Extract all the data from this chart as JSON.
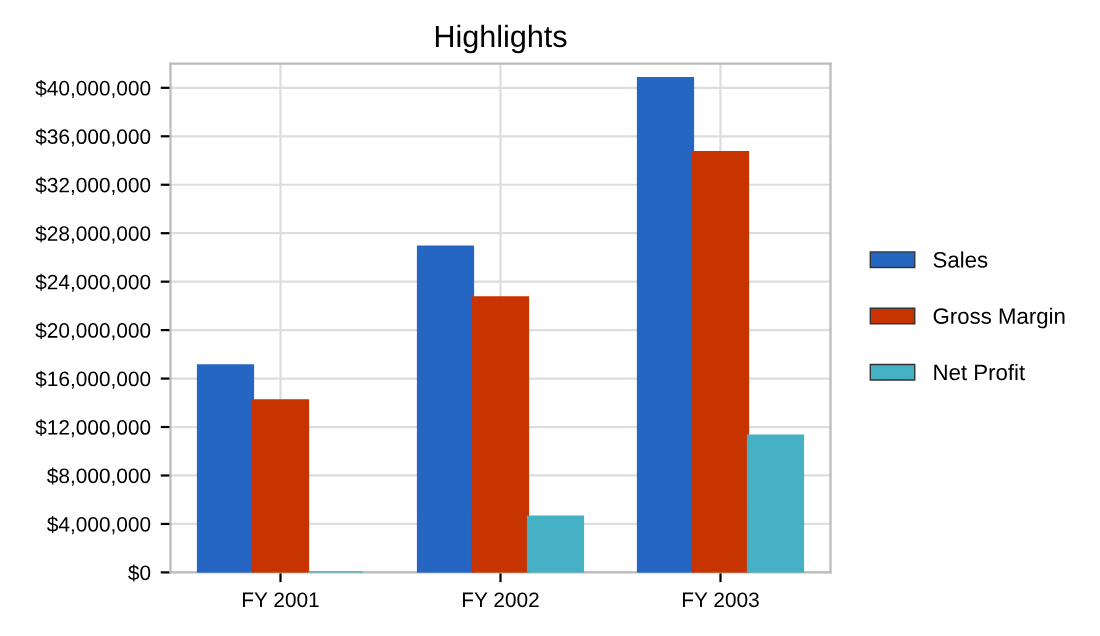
{
  "chart_data": {
    "type": "bar",
    "title": "Highlights",
    "categories": [
      "FY 2001",
      "FY 2002",
      "FY 2003"
    ],
    "series": [
      {
        "name": "Sales",
        "color": "#2666c3",
        "values": [
          17100000,
          26900000,
          40800000
        ]
      },
      {
        "name": "Gross Margin",
        "color": "#c83400",
        "values": [
          14200000,
          22700000,
          34700000
        ]
      },
      {
        "name": "Net Profit",
        "color": "#46b0c4",
        "values": [
          0,
          4600000,
          11300000
        ]
      }
    ],
    "ylim": [
      0,
      42000000
    ],
    "yticks": [
      {
        "value": 0,
        "label": "$0"
      },
      {
        "value": 4000000,
        "label": "$4,000,000"
      },
      {
        "value": 8000000,
        "label": "$8,000,000"
      },
      {
        "value": 12000000,
        "label": "$12,000,000"
      },
      {
        "value": 16000000,
        "label": "$16,000,000"
      },
      {
        "value": 20000000,
        "label": "$20,000,000"
      },
      {
        "value": 24000000,
        "label": "$24,000,000"
      },
      {
        "value": 28000000,
        "label": "$28,000,000"
      },
      {
        "value": 32000000,
        "label": "$32,000,000"
      },
      {
        "value": 36000000,
        "label": "$36,000,000"
      },
      {
        "value": 40000000,
        "label": "$40,000,000"
      }
    ],
    "grid": true,
    "legend": "right"
  }
}
